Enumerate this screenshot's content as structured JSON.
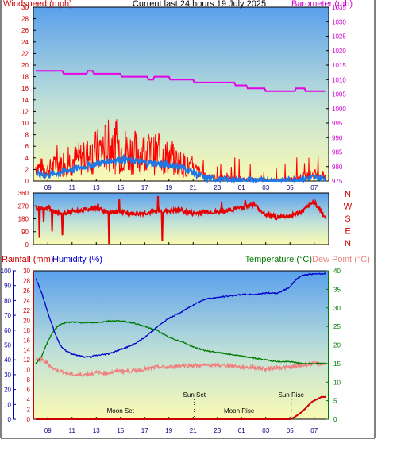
{
  "header": {
    "left_label": "Windspeed (mph)",
    "title": "Current last 24 hours 19 July 2025",
    "right_label": "Barometer (mb)"
  },
  "lower_header": {
    "rain_label": "Rainfall (mm)",
    "humidity_label": "Humidity (%)",
    "temp_label": "Temperature (°C)",
    "dew_label": "Dew Point (°C)"
  },
  "hour_ticks": [
    "09",
    "11",
    "13",
    "15",
    "17",
    "19",
    "21",
    "23",
    "01",
    "03",
    "05",
    "07"
  ],
  "direction_labels": [
    "N",
    "W",
    "S",
    "E",
    "N"
  ],
  "annotations": [
    {
      "text": "Moon Set",
      "hour": 15.0,
      "row": "low"
    },
    {
      "text": "Sun Set",
      "hour": 21.1,
      "row": "high"
    },
    {
      "text": "Moon Rise",
      "hour": 24.8,
      "row": "low"
    },
    {
      "text": "Sun Rise",
      "hour": 29.1,
      "row": "high"
    }
  ],
  "colors": {
    "wind": "#ff0000",
    "gust_avg": "#1e78e6",
    "barometer": "#e600e6",
    "direction": "#e60000",
    "humidity": "#0000cc",
    "temperature": "#007a00",
    "dewpoint": "#f08080",
    "rain": "#cc0000",
    "axis_blue": "#0000aa"
  },
  "chart_data": [
    {
      "type": "line",
      "name": "wind-barometer",
      "x_range_hours": [
        7.8,
        32.2
      ],
      "y_left": {
        "label": "Windspeed (mph)",
        "ticks": [
          0,
          2,
          4,
          6,
          8,
          10,
          12,
          14,
          16,
          18,
          20,
          22,
          24,
          26,
          28,
          30
        ],
        "lim": [
          0,
          30
        ]
      },
      "y_right": {
        "label": "Barometer (mb)",
        "ticks": [
          975,
          980,
          985,
          990,
          995,
          1000,
          1005,
          1010,
          1015,
          1020,
          1025,
          1030,
          1035
        ],
        "lim": [
          975,
          1035
        ]
      },
      "series": [
        {
          "axis": "right",
          "x": [
            8,
            10,
            10.5,
            12,
            12.5,
            13,
            17,
            17.5,
            18,
            20,
            22,
            24,
            25,
            26,
            28,
            29,
            30,
            30.5,
            31,
            32
          ],
          "values": [
            1013,
            1013,
            1012,
            1012,
            1013,
            1012,
            1011,
            1010,
            1011,
            1010,
            1009,
            1009,
            1008,
            1007,
            1006,
            1006,
            1007,
            1006,
            1006,
            1006
          ]
        },
        {
          "axis": "left",
          "x": [
            8,
            9,
            10,
            11,
            12,
            13,
            14,
            15,
            16,
            17,
            18,
            19,
            20,
            21,
            22,
            23,
            24,
            25,
            26,
            27,
            28,
            29,
            30,
            31,
            32
          ],
          "values": [
            2.5,
            2,
            3,
            3.5,
            4,
            5,
            6,
            5.5,
            5,
            4.8,
            4.5,
            4,
            3,
            2,
            1,
            0.5,
            0.5,
            0.3,
            0.3,
            0.2,
            0.2,
            0.3,
            0.8,
            1.2,
            1
          ]
        },
        {
          "axis": "left",
          "x": [
            8,
            9,
            10,
            11,
            12,
            13,
            14,
            15,
            16,
            17,
            18,
            19,
            20,
            21,
            22,
            23,
            24,
            25,
            26,
            27,
            28,
            29,
            30,
            31,
            32
          ],
          "values": [
            1.2,
            1,
            1.5,
            2,
            2.5,
            3,
            3.5,
            3.8,
            3.5,
            3.2,
            3,
            2.8,
            2.5,
            1.5,
            0.5,
            0.2,
            0.1,
            0.1,
            0.1,
            0,
            0,
            0.1,
            0.4,
            0.6,
            0.4
          ]
        }
      ]
    },
    {
      "type": "line",
      "name": "wind-direction",
      "y_left": {
        "ticks": [
          0,
          90,
          180,
          270,
          360
        ],
        "lim": [
          0,
          360
        ]
      },
      "series": [
        {
          "x": [
            8,
            9,
            10,
            11,
            12,
            13,
            14,
            15,
            16,
            17,
            18,
            19,
            20,
            21,
            22,
            23,
            24,
            25,
            26,
            27,
            28,
            29,
            30,
            31,
            32
          ],
          "values": [
            250,
            260,
            210,
            230,
            240,
            260,
            220,
            225,
            215,
            220,
            230,
            235,
            240,
            215,
            230,
            225,
            240,
            260,
            280,
            210,
            190,
            200,
            230,
            300,
            180
          ]
        }
      ]
    },
    {
      "type": "line",
      "name": "temperature-humidity-rain",
      "y_left_outer": {
        "label": "Humidity (%)",
        "ticks": [
          0,
          10,
          20,
          30,
          40,
          50,
          60,
          70,
          80,
          90,
          100
        ],
        "lim": [
          0,
          100
        ]
      },
      "y_left_inner": {
        "label": "Rainfall (mm)",
        "ticks": [
          0,
          2,
          4,
          6,
          8,
          10,
          12,
          14,
          16,
          18,
          20,
          22,
          24,
          26,
          28,
          30
        ],
        "lim": [
          0,
          30
        ]
      },
      "y_right": {
        "label": "Temperature (°C)",
        "ticks": [
          0,
          5,
          10,
          15,
          20,
          25,
          30,
          35,
          40
        ],
        "lim": [
          0,
          40
        ]
      },
      "series": [
        {
          "name": "Humidity (%)",
          "axis": "left_outer",
          "x": [
            8,
            8.5,
            9,
            9.5,
            10,
            10.5,
            11,
            11.5,
            12,
            12.5,
            13,
            14,
            15,
            16,
            17,
            18,
            19,
            20,
            21,
            22,
            23,
            24,
            25,
            26,
            27,
            28,
            29,
            29.5,
            30,
            31,
            32
          ],
          "values": [
            95,
            85,
            72,
            60,
            50,
            46,
            44,
            43,
            42,
            42,
            43,
            44,
            47,
            50,
            55,
            62,
            68,
            72,
            77,
            81,
            82,
            83,
            84,
            84,
            85,
            85,
            89,
            94,
            97,
            98,
            98
          ]
        },
        {
          "name": "Temperature (°C)",
          "axis": "right",
          "x": [
            8,
            8.5,
            9,
            9.5,
            10,
            10.5,
            11,
            12,
            13,
            14,
            15,
            16,
            17,
            18,
            19,
            20,
            21,
            22,
            23,
            24,
            25,
            26,
            27,
            28,
            29,
            30,
            31,
            32
          ],
          "values": [
            15,
            17,
            21,
            24,
            25.5,
            26,
            26.2,
            26,
            26,
            26.5,
            26.5,
            26,
            25,
            24,
            22,
            21,
            19.5,
            18.5,
            18,
            17.5,
            17,
            16.5,
            16,
            15.5,
            15.5,
            15,
            15,
            15
          ]
        },
        {
          "name": "Dew Point (°C)",
          "axis": "right",
          "x": [
            8,
            8.5,
            9,
            9.5,
            10,
            10.5,
            11,
            12,
            13,
            14,
            15,
            16,
            17,
            18,
            19,
            20,
            21,
            22,
            23,
            24,
            25,
            26,
            27,
            28,
            29,
            30,
            31,
            32
          ],
          "values": [
            16,
            16,
            15,
            13.5,
            13,
            12.5,
            12,
            12,
            12.5,
            12.5,
            13,
            13,
            13.5,
            14,
            14,
            14.5,
            14.5,
            14.5,
            14.5,
            14.5,
            14,
            14,
            13.5,
            14,
            14,
            14.5,
            15,
            15
          ]
        },
        {
          "name": "Rainfall (mm)",
          "axis": "left_inner",
          "x": [
            8,
            28,
            29,
            29.3,
            29.6,
            30,
            30.4,
            30.8,
            31.2,
            31.6,
            32
          ],
          "values": [
            0,
            0,
            0,
            0.3,
            0.8,
            1.5,
            2.5,
            3.5,
            4,
            4.5,
            4.5
          ]
        }
      ]
    }
  ]
}
